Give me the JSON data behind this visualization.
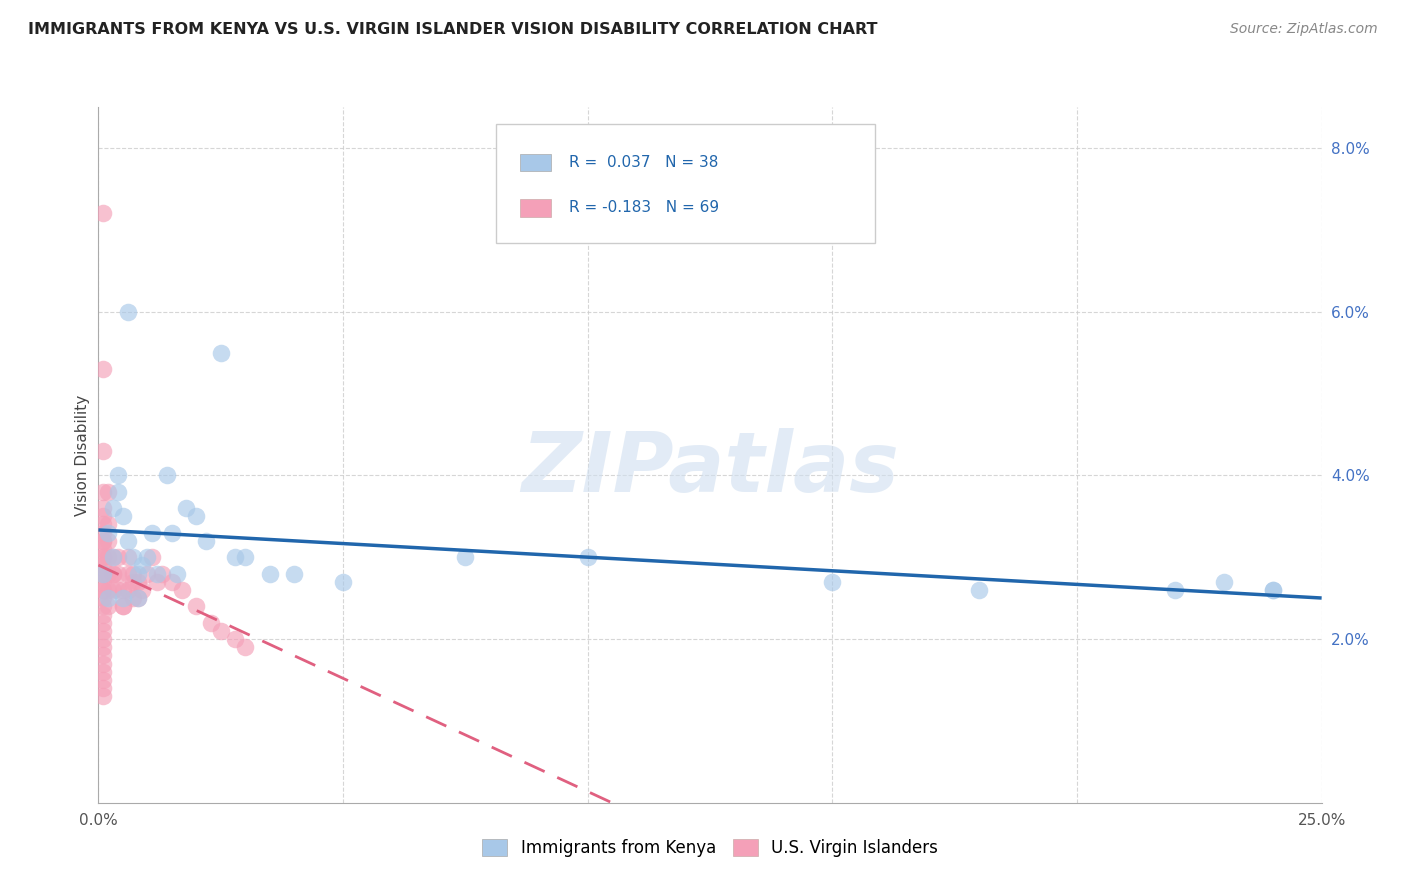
{
  "title": "IMMIGRANTS FROM KENYA VS U.S. VIRGIN ISLANDER VISION DISABILITY CORRELATION CHART",
  "source": "Source: ZipAtlas.com",
  "ylabel_text": "Vision Disability",
  "x_min": 0.0,
  "x_max": 0.25,
  "y_min": 0.0,
  "y_max": 0.085,
  "x_ticks": [
    0.0,
    0.05,
    0.1,
    0.15,
    0.2,
    0.25
  ],
  "x_tick_labels": [
    "0.0%",
    "",
    "",
    "",
    "",
    "25.0%"
  ],
  "y_ticks": [
    0.02,
    0.04,
    0.06,
    0.08
  ],
  "y_tick_labels": [
    "2.0%",
    "4.0%",
    "6.0%",
    "8.0%"
  ],
  "blue_color": "#a8c8e8",
  "pink_color": "#f4a0b8",
  "blue_line_color": "#2166ac",
  "pink_line_color": "#e06080",
  "watermark_text": "ZIPatlas",
  "legend_r_blue": "R =  0.037",
  "legend_n_blue": "N = 38",
  "legend_r_pink": "R = -0.183",
  "legend_n_pink": "N = 69",
  "legend_label_blue": "Immigrants from Kenya",
  "legend_label_pink": "U.S. Virgin Islanders",
  "blue_scatter_x": [
    0.001,
    0.002,
    0.003,
    0.003,
    0.004,
    0.005,
    0.005,
    0.006,
    0.007,
    0.008,
    0.009,
    0.01,
    0.011,
    0.012,
    0.014,
    0.015,
    0.016,
    0.018,
    0.02,
    0.022,
    0.025,
    0.028,
    0.03,
    0.035,
    0.04,
    0.05,
    0.075,
    0.1,
    0.15,
    0.18,
    0.22,
    0.23,
    0.24,
    0.24,
    0.002,
    0.004,
    0.006,
    0.008
  ],
  "blue_scatter_y": [
    0.028,
    0.033,
    0.036,
    0.03,
    0.038,
    0.035,
    0.025,
    0.032,
    0.03,
    0.028,
    0.029,
    0.03,
    0.033,
    0.028,
    0.04,
    0.033,
    0.028,
    0.036,
    0.035,
    0.032,
    0.055,
    0.03,
    0.03,
    0.028,
    0.028,
    0.027,
    0.03,
    0.03,
    0.027,
    0.026,
    0.026,
    0.027,
    0.026,
    0.026,
    0.025,
    0.04,
    0.06,
    0.025
  ],
  "pink_scatter_x": [
    0.001,
    0.001,
    0.001,
    0.001,
    0.001,
    0.001,
    0.001,
    0.001,
    0.001,
    0.001,
    0.001,
    0.001,
    0.001,
    0.001,
    0.001,
    0.001,
    0.001,
    0.001,
    0.001,
    0.001,
    0.001,
    0.001,
    0.001,
    0.001,
    0.001,
    0.001,
    0.002,
    0.002,
    0.002,
    0.002,
    0.002,
    0.003,
    0.003,
    0.003,
    0.004,
    0.004,
    0.005,
    0.005,
    0.006,
    0.006,
    0.007,
    0.007,
    0.008,
    0.009,
    0.01,
    0.011,
    0.012,
    0.013,
    0.015,
    0.017,
    0.02,
    0.023,
    0.025,
    0.028,
    0.03,
    0.001,
    0.001,
    0.001,
    0.001,
    0.001,
    0.001,
    0.002,
    0.002,
    0.003,
    0.004,
    0.005,
    0.006,
    0.007,
    0.008
  ],
  "pink_scatter_y": [
    0.072,
    0.053,
    0.043,
    0.038,
    0.035,
    0.033,
    0.032,
    0.031,
    0.03,
    0.029,
    0.028,
    0.027,
    0.026,
    0.025,
    0.024,
    0.023,
    0.022,
    0.021,
    0.02,
    0.019,
    0.018,
    0.017,
    0.016,
    0.015,
    0.014,
    0.013,
    0.038,
    0.032,
    0.028,
    0.026,
    0.024,
    0.03,
    0.028,
    0.026,
    0.03,
    0.028,
    0.026,
    0.024,
    0.03,
    0.026,
    0.028,
    0.025,
    0.027,
    0.026,
    0.028,
    0.03,
    0.027,
    0.028,
    0.027,
    0.026,
    0.024,
    0.022,
    0.021,
    0.02,
    0.019,
    0.036,
    0.034,
    0.032,
    0.03,
    0.028,
    0.026,
    0.034,
    0.03,
    0.028,
    0.026,
    0.024,
    0.028,
    0.027,
    0.025
  ],
  "background_color": "#ffffff",
  "grid_color": "#cccccc"
}
